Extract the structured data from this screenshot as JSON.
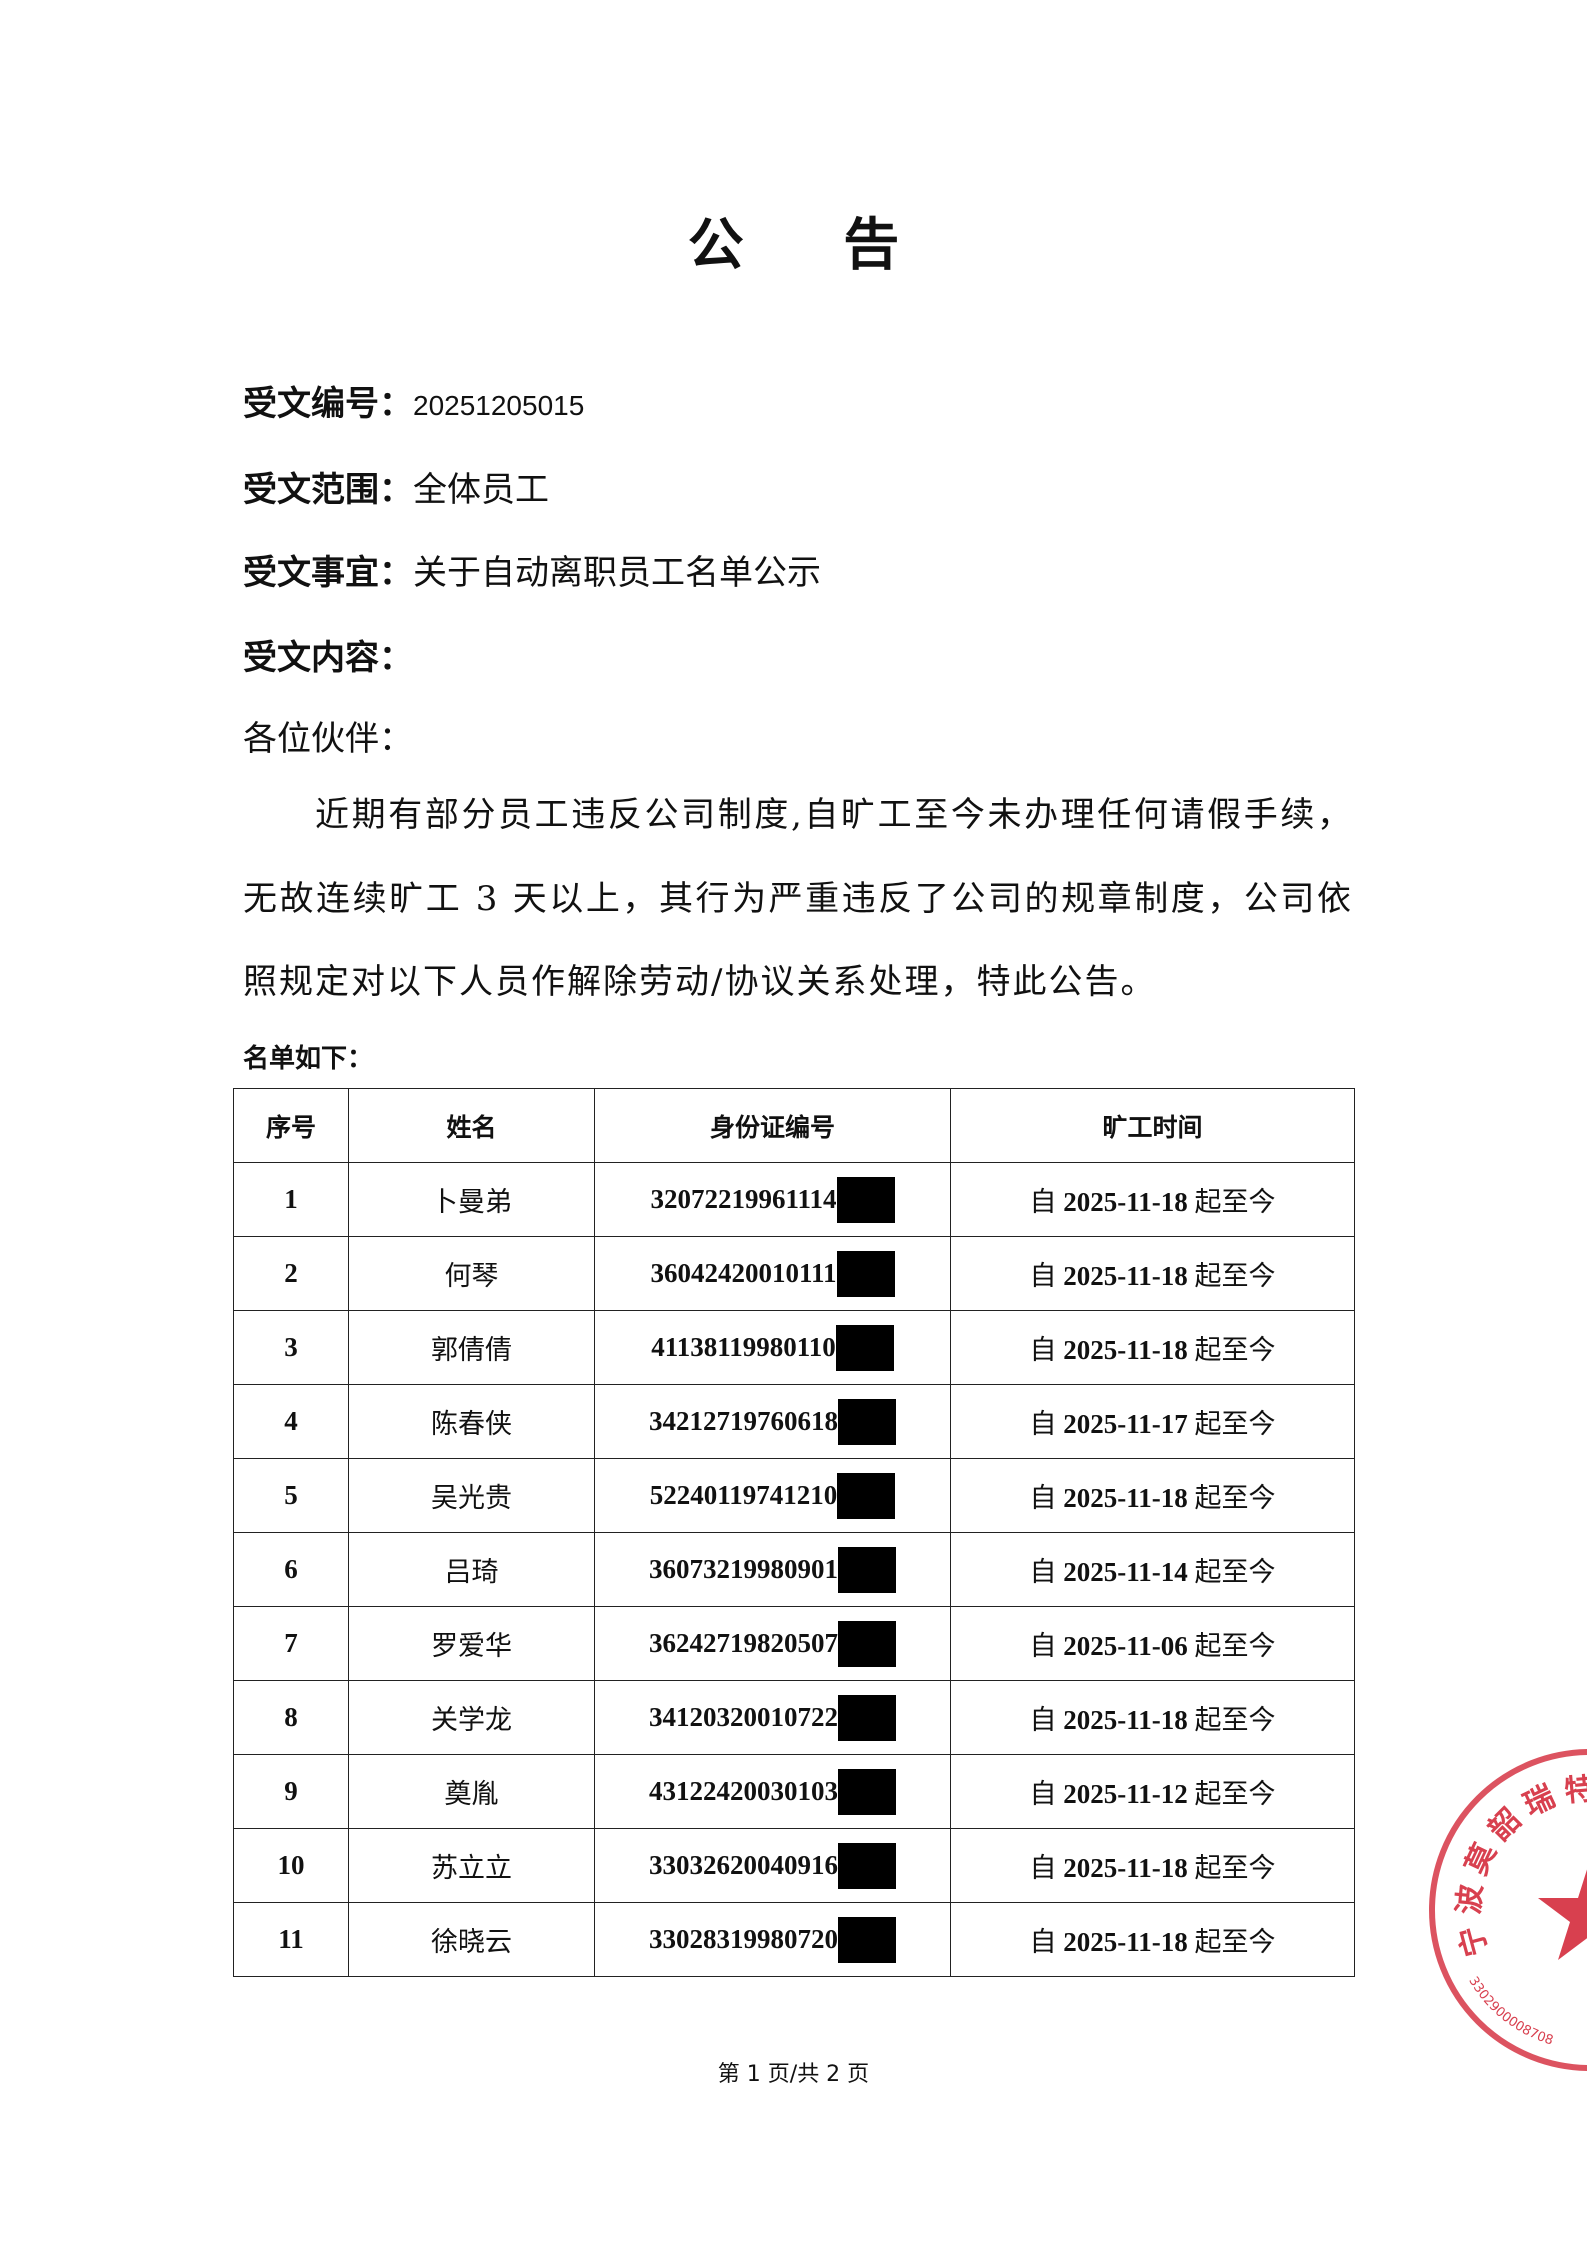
{
  "title": "公 告",
  "fields": {
    "doc_no_label": "受文编号：",
    "doc_no": "20251205015",
    "scope_label": "受文范围：",
    "scope": "全体员工",
    "subject_label": "受文事宜：",
    "subject": "关于自动离职员工名单公示",
    "content_label": "受文内容："
  },
  "greeting": "各位伙伴：",
  "paragraph": "近期有部分员工违反公司制度,自旷工至今未办理任何请假手续，无故连续旷工 3 天以上，其行为严重违反了公司的规章制度，公司依照规定对以下人员作解除劳动/协议关系处理，特此公告。",
  "list_label": "名单如下：",
  "table": {
    "headers": [
      "序号",
      "姓名",
      "身份证编号",
      "旷工时间"
    ],
    "rows": [
      {
        "no": "1",
        "name": "卜曼弟",
        "id": "32072219961114",
        "time_prefix": "自",
        "date": "2025-11-18",
        "time_suffix": "起至今"
      },
      {
        "no": "2",
        "name": "何琴",
        "id": "36042420010111",
        "time_prefix": "自",
        "date": "2025-11-18",
        "time_suffix": "起至今"
      },
      {
        "no": "3",
        "name": "郭倩倩",
        "id": "41138119980110",
        "time_prefix": "自",
        "date": "2025-11-18",
        "time_suffix": "起至今"
      },
      {
        "no": "4",
        "name": "陈春侠",
        "id": "34212719760618",
        "time_prefix": "自",
        "date": "2025-11-17",
        "time_suffix": "起至今"
      },
      {
        "no": "5",
        "name": "吴光贵",
        "id": "52240119741210",
        "time_prefix": "自",
        "date": "2025-11-18",
        "time_suffix": "起至今"
      },
      {
        "no": "6",
        "name": "吕琦",
        "id": "36073219980901",
        "time_prefix": "自",
        "date": "2025-11-14",
        "time_suffix": "起至今"
      },
      {
        "no": "7",
        "name": "罗爱华",
        "id": "36242719820507",
        "time_prefix": "自",
        "date": "2025-11-06",
        "time_suffix": "起至今"
      },
      {
        "no": "8",
        "name": "关学龙",
        "id": "34120320010722",
        "time_prefix": "自",
        "date": "2025-11-18",
        "time_suffix": "起至今"
      },
      {
        "no": "9",
        "name": "奠胤",
        "id": "43122420030103",
        "time_prefix": "自",
        "date": "2025-11-12",
        "time_suffix": "起至今"
      },
      {
        "no": "10",
        "name": "苏立立",
        "id": "33032620040916",
        "time_prefix": "自",
        "date": "2025-11-18",
        "time_suffix": "起至今"
      },
      {
        "no": "11",
        "name": "徐晓云",
        "id": "33028319980720",
        "time_prefix": "自",
        "date": "2025-11-18",
        "time_suffix": "起至今"
      }
    ]
  },
  "footer": "第 1 页/共 2 页",
  "stamp": {
    "text": "宁波莫韶瑞特",
    "code": "3302900008708",
    "color": "#d8404f"
  }
}
